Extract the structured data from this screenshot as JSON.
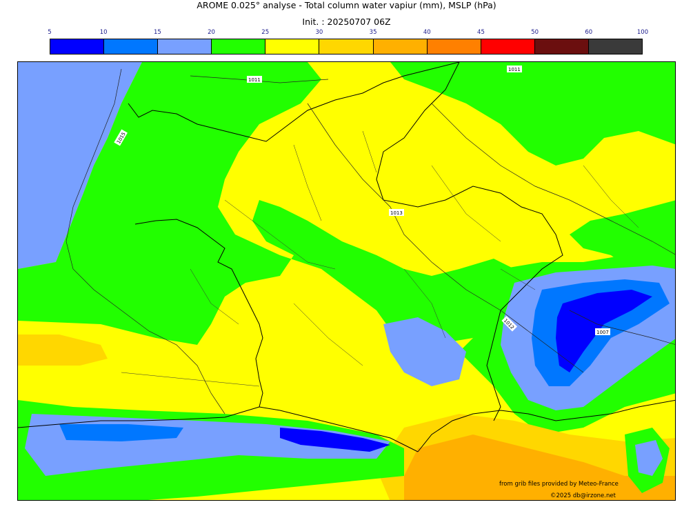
{
  "header": {
    "title": "AROME 0.025° analyse - Total column water vapiur (mm), MSLP (hPa)",
    "init": "Init. : 20250707 06Z"
  },
  "colorbar": {
    "ticks": [
      "5",
      "10",
      "15",
      "20",
      "25",
      "30",
      "35",
      "40",
      "45",
      "50",
      "60",
      "100"
    ],
    "colors": [
      "#0000ff",
      "#0077ff",
      "#78a0ff",
      "#22ff00",
      "#ffff00",
      "#ffd700",
      "#ffb000",
      "#ff8000",
      "#ff0000",
      "#6b0f0f",
      "#3a3a3a"
    ]
  },
  "map": {
    "isobar_labels": [
      "1011",
      "1015",
      "1013",
      "1011",
      "1007",
      "1012"
    ],
    "colors": {
      "deep_blue": "#0000ff",
      "mid_blue": "#0077ff",
      "light_blue": "#78a0ff",
      "green": "#22ff00",
      "yellow": "#ffff00",
      "gold": "#ffd700",
      "orange": "#ffb000"
    }
  },
  "credits": {
    "source": "from grib files provided by Meteo-France",
    "copyright": "©2025 db@irzone.net"
  }
}
